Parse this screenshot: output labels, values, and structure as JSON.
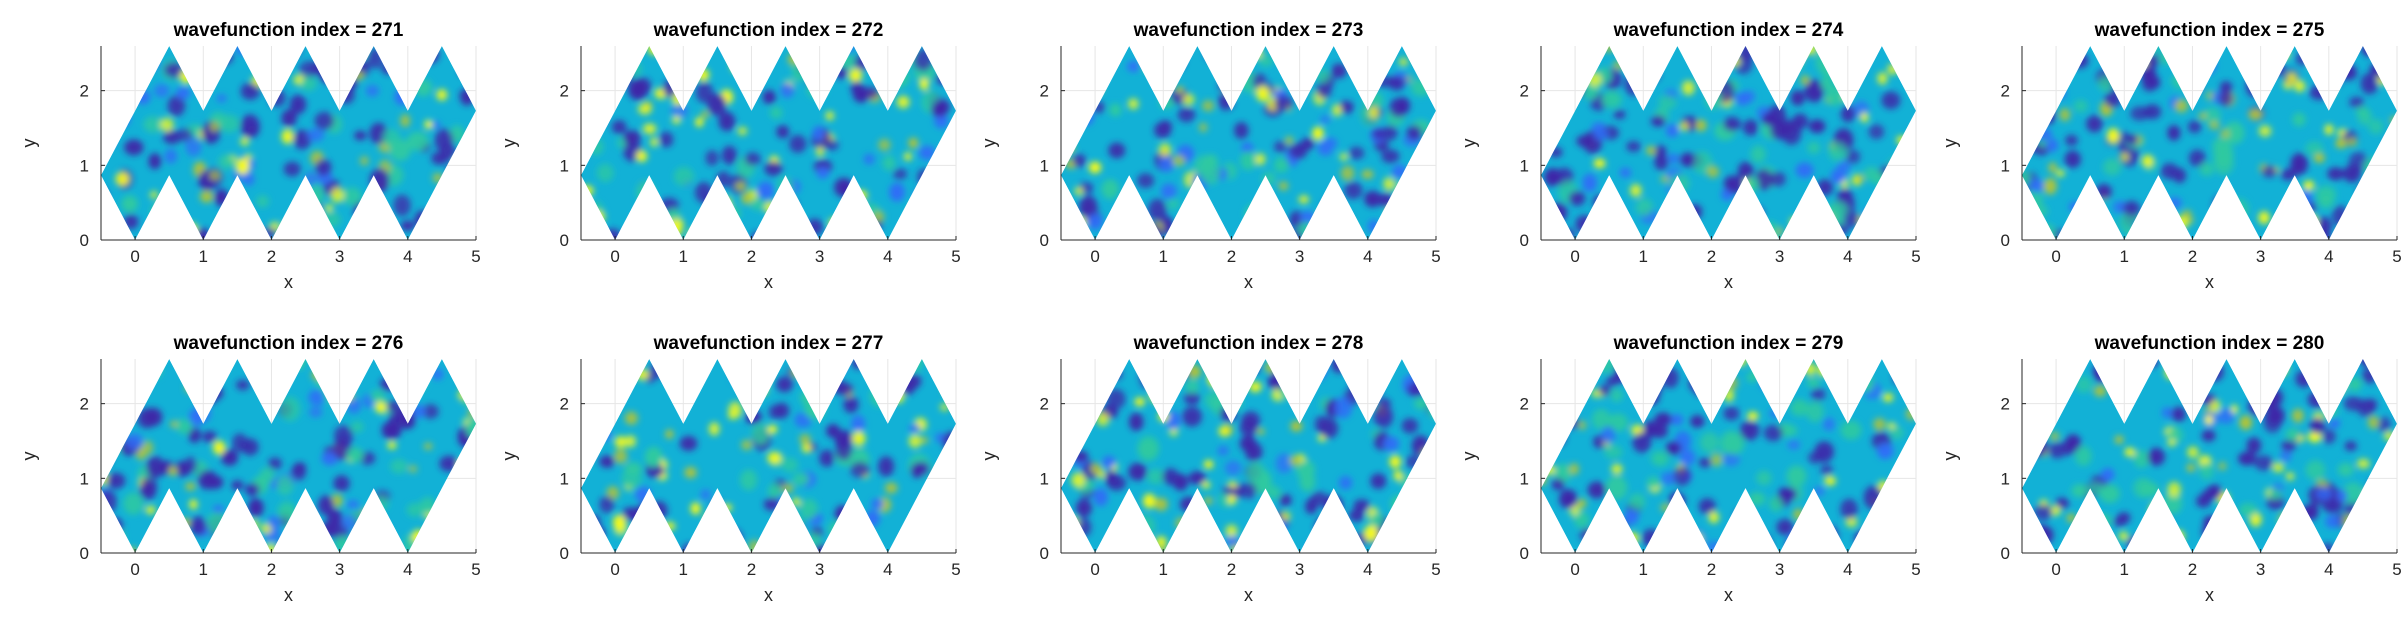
{
  "figure": {
    "rows": 2,
    "cols": 5
  },
  "chart_data": [
    {
      "type": "heatmap",
      "title": "wavefunction index = 271",
      "index": 271,
      "xlabel": "x",
      "ylabel": "y",
      "xlim": [
        -0.5,
        5
      ],
      "ylim": [
        0,
        2.598
      ],
      "xticks": [
        "0",
        "1",
        "2",
        "3",
        "4",
        "5"
      ],
      "yticks": [
        "0",
        "1",
        "2"
      ],
      "grid": true,
      "colormap": "parula",
      "colormap_colors": [
        "#3e26a8",
        "#2f6ef6",
        "#12b1d6",
        "#2ec9a0",
        "#b3c436",
        "#f9fb15"
      ]
    },
    {
      "type": "heatmap",
      "title": "wavefunction index = 272",
      "index": 272,
      "xlabel": "x",
      "ylabel": "y",
      "xlim": [
        -0.5,
        5
      ],
      "ylim": [
        0,
        2.598
      ],
      "xticks": [
        "0",
        "1",
        "2",
        "3",
        "4",
        "5"
      ],
      "yticks": [
        "0",
        "1",
        "2"
      ],
      "grid": true,
      "colormap": "parula",
      "colormap_colors": [
        "#3e26a8",
        "#2f6ef6",
        "#12b1d6",
        "#2ec9a0",
        "#b3c436",
        "#f9fb15"
      ]
    },
    {
      "type": "heatmap",
      "title": "wavefunction index = 273",
      "index": 273,
      "xlabel": "x",
      "ylabel": "y",
      "xlim": [
        -0.5,
        5
      ],
      "ylim": [
        0,
        2.598
      ],
      "xticks": [
        "0",
        "1",
        "2",
        "3",
        "4",
        "5"
      ],
      "yticks": [
        "0",
        "1",
        "2"
      ],
      "grid": true,
      "colormap": "parula",
      "colormap_colors": [
        "#3e26a8",
        "#2f6ef6",
        "#12b1d6",
        "#2ec9a0",
        "#b3c436",
        "#f9fb15"
      ]
    },
    {
      "type": "heatmap",
      "title": "wavefunction index = 274",
      "index": 274,
      "xlabel": "x",
      "ylabel": "y",
      "xlim": [
        -0.5,
        5
      ],
      "ylim": [
        0,
        2.598
      ],
      "xticks": [
        "0",
        "1",
        "2",
        "3",
        "4",
        "5"
      ],
      "yticks": [
        "0",
        "1",
        "2"
      ],
      "grid": true,
      "colormap": "parula",
      "colormap_colors": [
        "#3e26a8",
        "#2f6ef6",
        "#12b1d6",
        "#2ec9a0",
        "#b3c436",
        "#f9fb15"
      ]
    },
    {
      "type": "heatmap",
      "title": "wavefunction index = 275",
      "index": 275,
      "xlabel": "x",
      "ylabel": "y",
      "xlim": [
        -0.5,
        5
      ],
      "ylim": [
        0,
        2.598
      ],
      "xticks": [
        "0",
        "1",
        "2",
        "3",
        "4",
        "5"
      ],
      "yticks": [
        "0",
        "1",
        "2"
      ],
      "grid": true,
      "colormap": "parula",
      "colormap_colors": [
        "#3e26a8",
        "#2f6ef6",
        "#12b1d6",
        "#2ec9a0",
        "#b3c436",
        "#f9fb15"
      ]
    },
    {
      "type": "heatmap",
      "title": "wavefunction index = 276",
      "index": 276,
      "xlabel": "x",
      "ylabel": "y",
      "xlim": [
        -0.5,
        5
      ],
      "ylim": [
        0,
        2.598
      ],
      "xticks": [
        "0",
        "1",
        "2",
        "3",
        "4",
        "5"
      ],
      "yticks": [
        "0",
        "1",
        "2"
      ],
      "grid": true,
      "colormap": "parula",
      "colormap_colors": [
        "#3e26a8",
        "#2f6ef6",
        "#12b1d6",
        "#2ec9a0",
        "#b3c436",
        "#f9fb15"
      ]
    },
    {
      "type": "heatmap",
      "title": "wavefunction index = 277",
      "index": 277,
      "xlabel": "x",
      "ylabel": "y",
      "xlim": [
        -0.5,
        5
      ],
      "ylim": [
        0,
        2.598
      ],
      "xticks": [
        "0",
        "1",
        "2",
        "3",
        "4",
        "5"
      ],
      "yticks": [
        "0",
        "1",
        "2"
      ],
      "grid": true,
      "colormap": "parula",
      "colormap_colors": [
        "#3e26a8",
        "#2f6ef6",
        "#12b1d6",
        "#2ec9a0",
        "#b3c436",
        "#f9fb15"
      ]
    },
    {
      "type": "heatmap",
      "title": "wavefunction index = 278",
      "index": 278,
      "xlabel": "x",
      "ylabel": "y",
      "xlim": [
        -0.5,
        5
      ],
      "ylim": [
        0,
        2.598
      ],
      "xticks": [
        "0",
        "1",
        "2",
        "3",
        "4",
        "5"
      ],
      "yticks": [
        "0",
        "1",
        "2"
      ],
      "grid": true,
      "colormap": "parula",
      "colormap_colors": [
        "#3e26a8",
        "#2f6ef6",
        "#12b1d6",
        "#2ec9a0",
        "#b3c436",
        "#f9fb15"
      ]
    },
    {
      "type": "heatmap",
      "title": "wavefunction index = 279",
      "index": 279,
      "xlabel": "x",
      "ylabel": "y",
      "xlim": [
        -0.5,
        5
      ],
      "ylim": [
        0,
        2.598
      ],
      "xticks": [
        "0",
        "1",
        "2",
        "3",
        "4",
        "5"
      ],
      "yticks": [
        "0",
        "1",
        "2"
      ],
      "grid": true,
      "colormap": "parula",
      "colormap_colors": [
        "#3e26a8",
        "#2f6ef6",
        "#12b1d6",
        "#2ec9a0",
        "#b3c436",
        "#f9fb15"
      ]
    },
    {
      "type": "heatmap",
      "title": "wavefunction index = 280",
      "index": 280,
      "xlabel": "x",
      "ylabel": "y",
      "xlim": [
        -0.5,
        5
      ],
      "ylim": [
        0,
        2.598
      ],
      "xticks": [
        "0",
        "1",
        "2",
        "3",
        "4",
        "5"
      ],
      "yticks": [
        "0",
        "1",
        "2"
      ],
      "grid": true,
      "colormap": "parula",
      "colormap_colors": [
        "#3e26a8",
        "#2f6ef6",
        "#12b1d6",
        "#2ec9a0",
        "#b3c436",
        "#f9fb15"
      ]
    }
  ]
}
